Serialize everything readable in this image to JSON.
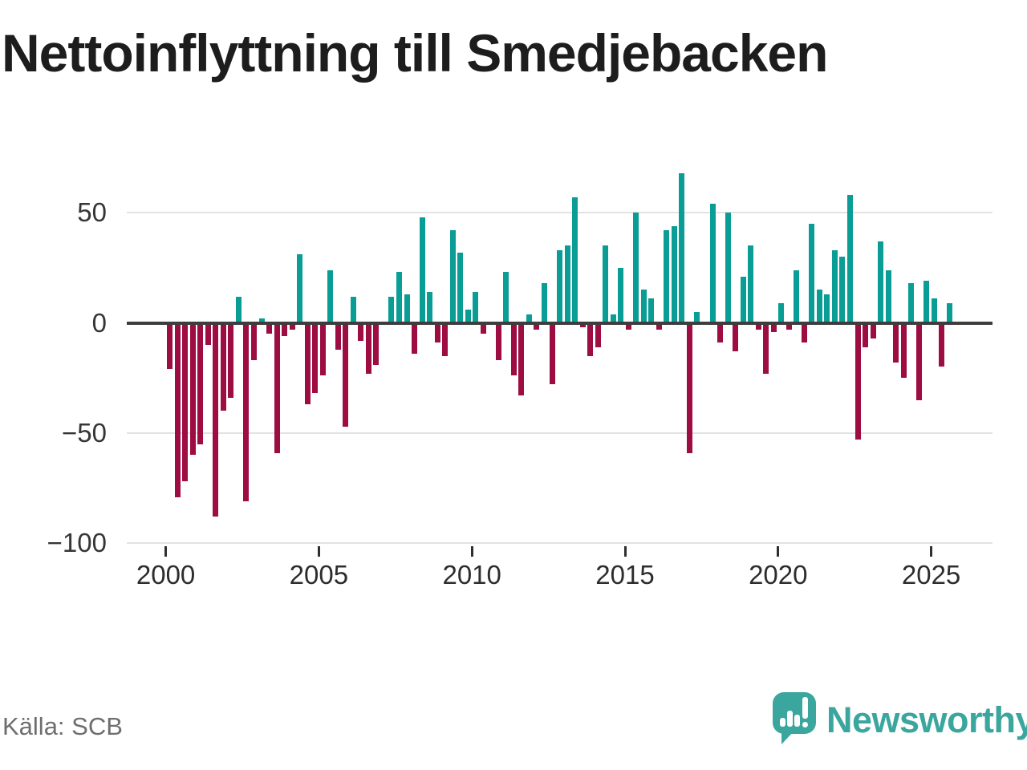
{
  "title": "Nettoinflyttning till Smedjebacken",
  "source": "Källa: SCB",
  "branding": {
    "name": "Newsworthy",
    "logo_color": "#3BA69E"
  },
  "colors": {
    "positive": "#0A9D95",
    "negative": "#9D0D41",
    "title_text": "#1d1d1d",
    "axis_text": "#363636",
    "gridline": "#e2e2e2",
    "zero_line": "#3d3d3d",
    "source_text": "#6e6e6e"
  },
  "y_axis": {
    "ticks": [
      "50",
      "0",
      "−50",
      "−100"
    ],
    "tick_values": [
      50,
      0,
      -50,
      -100
    ]
  },
  "x_axis": {
    "ticks": [
      "2000",
      "2005",
      "2010",
      "2015",
      "2020",
      "2025"
    ],
    "tick_years": [
      2000,
      2005,
      2010,
      2015,
      2020,
      2025
    ]
  },
  "chart_data": {
    "type": "bar",
    "title": "Nettoinflyttning till Smedjebacken",
    "frequency": "quarterly",
    "x_start": "2000-Q1",
    "x_end": "2025-Q3",
    "xlabel": "",
    "ylabel": "",
    "ylim": [
      -100,
      70
    ],
    "gridlines_y": [
      50,
      0,
      -50,
      -100
    ],
    "legend": "none",
    "values": [
      -21,
      -79,
      -72,
      -60,
      -55,
      -10,
      -88,
      -40,
      -34,
      12,
      -81,
      -17,
      2,
      -5,
      -59,
      -6,
      -3,
      31,
      -37,
      -32,
      -24,
      24,
      -12,
      -47,
      12,
      -8,
      -23,
      -19,
      0,
      12,
      23,
      13,
      -14,
      48,
      14,
      -9,
      -15,
      42,
      32,
      6,
      14,
      -5,
      0,
      -17,
      23,
      -24,
      -33,
      4,
      -3,
      18,
      -28,
      33,
      35,
      57,
      -2,
      -15,
      -11,
      35,
      4,
      25,
      -3,
      50,
      15,
      11,
      -3,
      42,
      44,
      68,
      -59,
      5,
      0,
      54,
      -9,
      50,
      -13,
      21,
      35,
      -3,
      -23,
      -4,
      9,
      -3,
      24,
      -9,
      45,
      15,
      13,
      33,
      30,
      58,
      -53,
      -11,
      -7,
      37,
      24,
      -18,
      -25,
      18,
      -35,
      19,
      11,
      -20,
      9
    ]
  }
}
